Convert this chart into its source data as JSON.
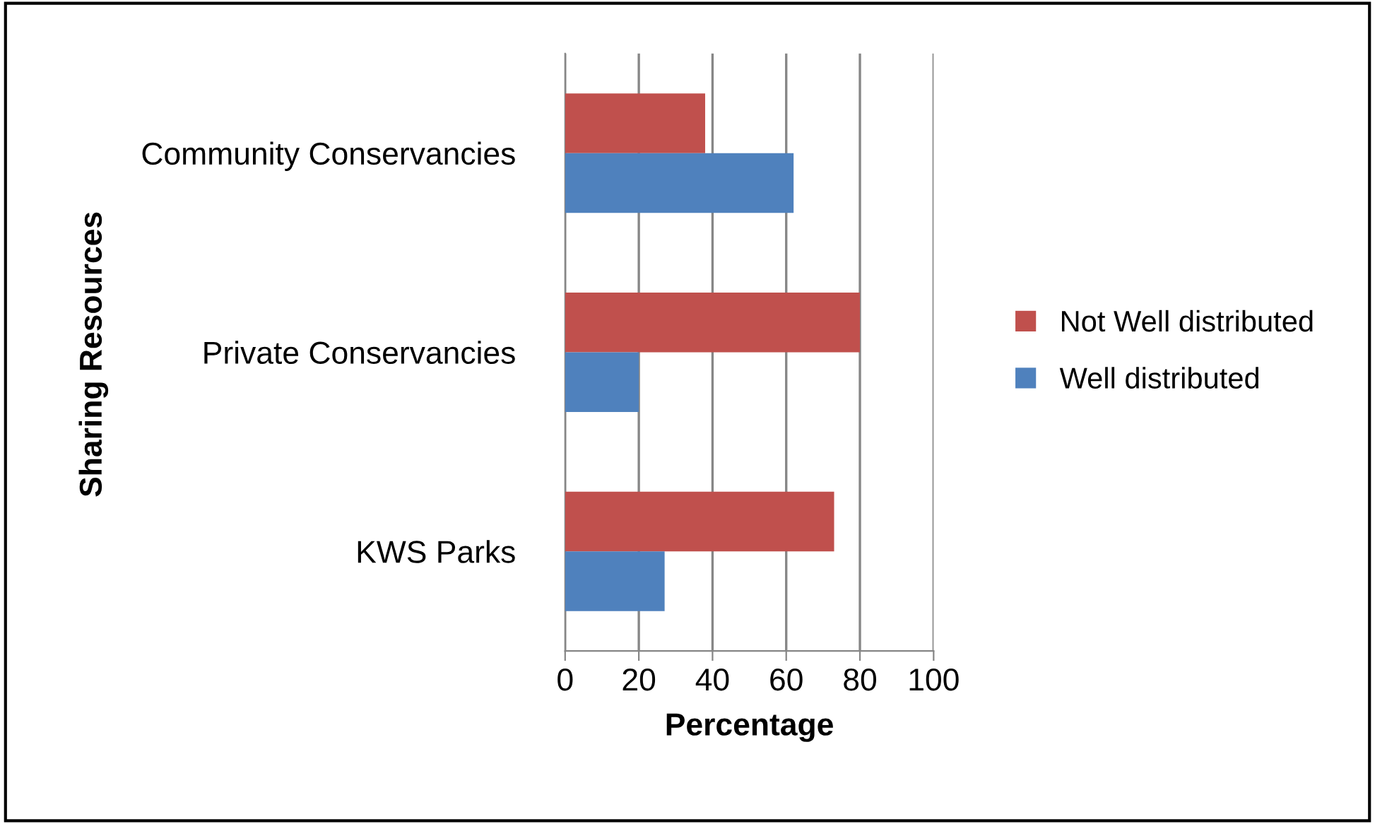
{
  "chart_data": {
    "type": "bar",
    "orientation": "horizontal",
    "xlabel": "Percentage",
    "ylabel": "Sharing Resources",
    "categories": [
      "Community Conservancies",
      "Private Conservancies",
      "KWS Parks"
    ],
    "series": [
      {
        "name": "Not Well distributed",
        "color": "#c0504d",
        "values": [
          38,
          80,
          73
        ]
      },
      {
        "name": "Well distributed",
        "color": "#4f81bd",
        "values": [
          62,
          20,
          27
        ]
      }
    ],
    "xlim": [
      0,
      100
    ],
    "xticks": [
      0,
      20,
      40,
      60,
      80,
      100
    ],
    "grid": "x",
    "legend": "right"
  }
}
